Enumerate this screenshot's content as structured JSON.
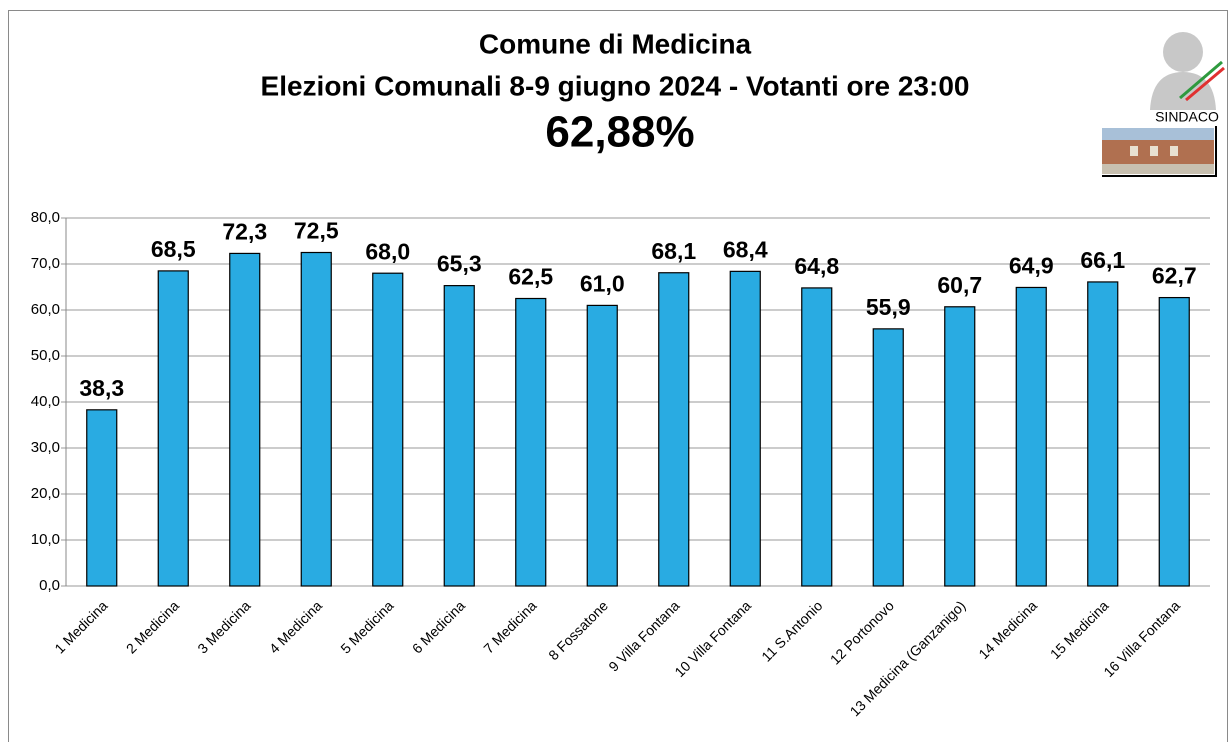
{
  "chart_data": {
    "type": "bar",
    "title": "Comune di Medicina",
    "subtitle": "Elezioni Comunali 8-9 giugno 2024 - Votanti ore 23:00",
    "annotation": "62,88%",
    "logo_text": "SINDACO",
    "categories": [
      "1 Medicina",
      "2 Medicina",
      "3 Medicina",
      "4 Medicina",
      "5 Medicina",
      "6 Medicina",
      "7 Medicina",
      "8 Fossatone",
      "9 Villa Fontana",
      "10 Villa Fontana",
      "11 S.Antonio",
      "12 Portonovo",
      "13 Medicina (Ganzanigo)",
      "14 Medicina",
      "15 Medicina",
      "16 Villa Fontana"
    ],
    "values": [
      38.3,
      68.5,
      72.3,
      72.5,
      68.0,
      65.3,
      62.5,
      61.0,
      68.1,
      68.4,
      64.8,
      55.9,
      60.7,
      64.9,
      66.1,
      62.7
    ],
    "value_labels": [
      "38,3",
      "68,5",
      "72,3",
      "72,5",
      "68,0",
      "65,3",
      "62,5",
      "61,0",
      "68,1",
      "68,4",
      "64,8",
      "55,9",
      "60,7",
      "64,9",
      "66,1",
      "62,7"
    ],
    "color": "#29abe2",
    "ylim": [
      0,
      80
    ],
    "yticks": [
      {
        "value": 0,
        "label": "0,0"
      },
      {
        "value": 10,
        "label": "10,0"
      },
      {
        "value": 20,
        "label": "20,0"
      },
      {
        "value": 30,
        "label": "30,0"
      },
      {
        "value": 40,
        "label": "40,0"
      },
      {
        "value": 50,
        "label": "50,0"
      },
      {
        "value": 60,
        "label": "60,0"
      },
      {
        "value": 70,
        "label": "70,0"
      },
      {
        "value": 80,
        "label": "80,0"
      }
    ],
    "grid": true
  }
}
